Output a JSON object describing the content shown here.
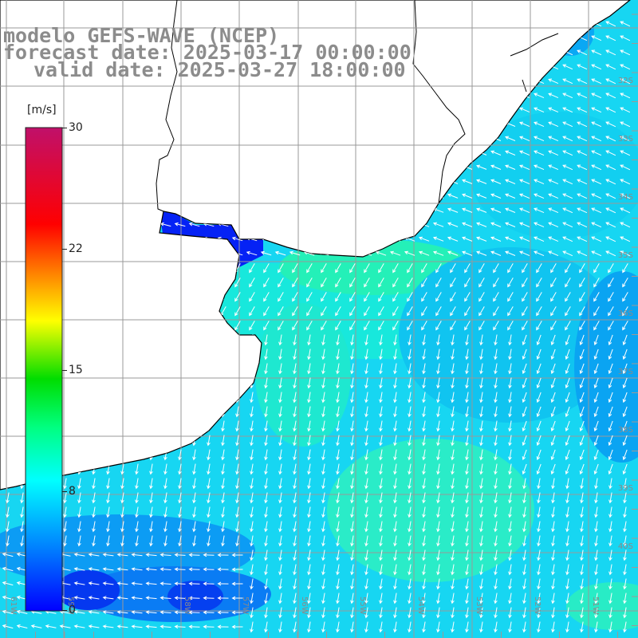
{
  "title": {
    "model": "modelo GEFS-WAVE (NCEP)",
    "forecast": "forecast date: 2025-03-17 00:00:00",
    "valid": "valid date: 2025-03-27 18:00:00"
  },
  "colorbar": {
    "unit": "[m/s]",
    "ticks": [
      "30",
      "22",
      "15",
      "8",
      "0"
    ],
    "tick_values": [
      30,
      22,
      15,
      8,
      0
    ],
    "range": [
      0,
      30
    ],
    "colors": [
      "#0000ff",
      "#00b0ff",
      "#00ffff",
      "#00ff80",
      "#00dd00",
      "#ffff00",
      "#ff8000",
      "#ff0000",
      "#c0106a"
    ]
  },
  "grid": {
    "lon_labels": [
      "61W",
      "59W",
      "58W",
      "57W",
      "56W",
      "55W",
      "54W",
      "53W",
      "52W",
      "51W"
    ],
    "lat_labels": [
      "32S",
      "33S",
      "34S",
      "35S",
      "36S",
      "37S",
      "38S",
      "39S",
      "40S"
    ],
    "lon_range": [
      -62,
      -51
    ],
    "lat_range": [
      -42,
      -31
    ]
  },
  "colors": {
    "land": "#ffffff",
    "coast": "#000000",
    "grid": "#999999",
    "arrow": "#ffffff"
  }
}
